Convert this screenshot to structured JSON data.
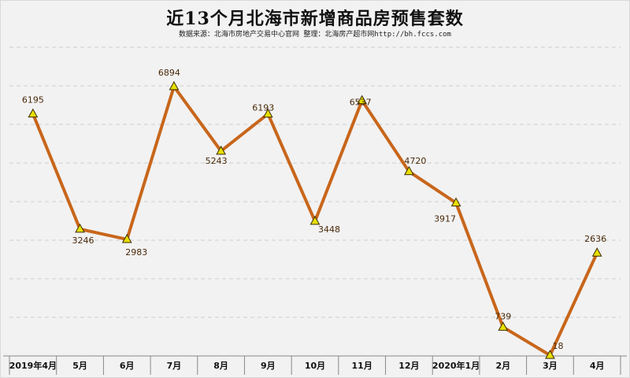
{
  "chart_data": {
    "type": "line",
    "title": "近13个月北海市新增商品房预售套数",
    "subtitle": "数据来源：北海市房地产交易中心官网  整理：北海房产超市网http://bh.fccs.com",
    "categories": [
      "2019年4月",
      "5月",
      "6月",
      "7月",
      "8月",
      "9月",
      "10月",
      "11月",
      "12月",
      "2020年1月",
      "2月",
      "3月",
      "4月"
    ],
    "series": [
      {
        "values": [
          6195,
          3246,
          2983,
          6894,
          5243,
          6193,
          3448,
          6537,
          4720,
          3917,
          739,
          18,
          2636
        ]
      }
    ],
    "data_labels": [
      "6195",
      "3246",
      "2983",
      "6894",
      "5243",
      "6193",
      "3448",
      "6537",
      "4720",
      "3917",
      "739",
      "18",
      "2636"
    ],
    "ylim": [
      0,
      7900
    ],
    "grid": true,
    "colors": {
      "line": "#c8661b",
      "marker": "#e8e000",
      "grid": "#cfcfcf"
    }
  }
}
